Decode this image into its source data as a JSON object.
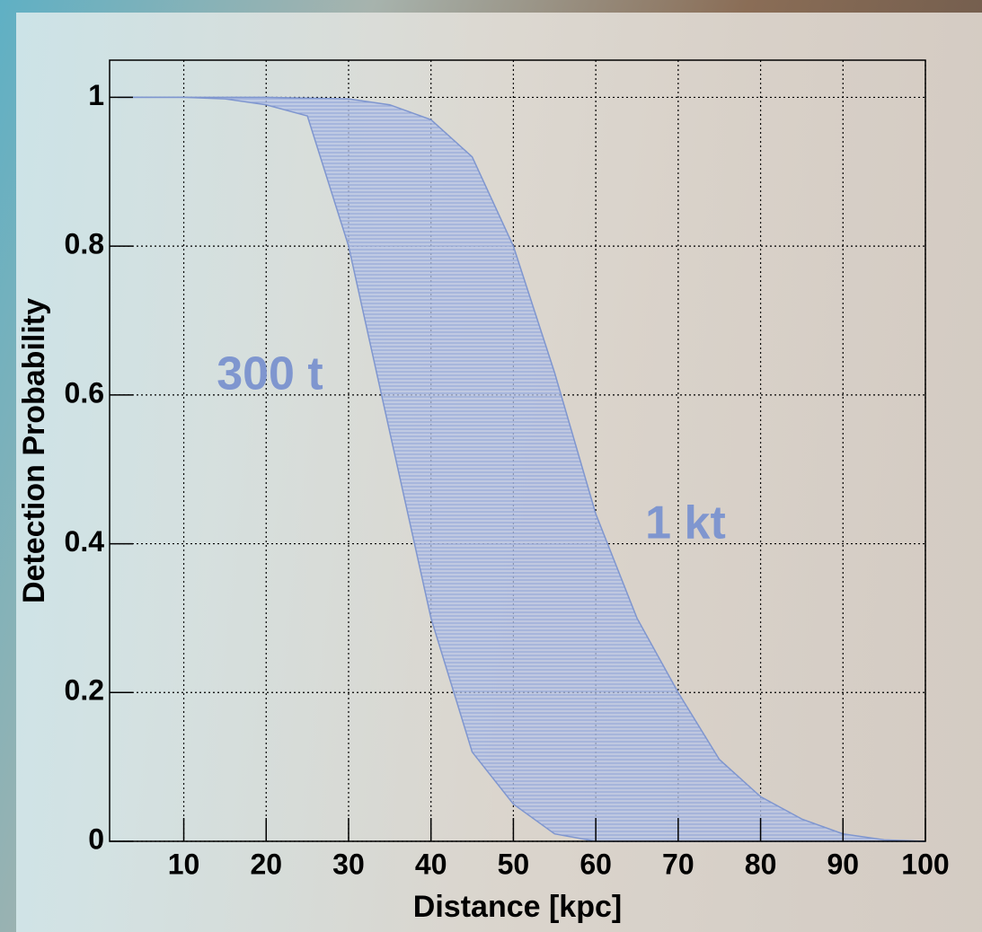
{
  "chart_data": {
    "type": "band",
    "x_label": "Distance [kpc]",
    "y_label": "Detection Probability",
    "x": [
      2,
      5,
      10,
      15,
      20,
      25,
      30,
      35,
      40,
      45,
      50,
      55,
      60,
      65,
      70,
      75,
      80,
      85,
      90,
      95,
      100
    ],
    "series": [
      {
        "name": "300 t",
        "color": "#7f96cf",
        "values": [
          1,
          1,
          1,
          0.998,
          0.99,
          0.975,
          0.8,
          0.55,
          0.3,
          0.12,
          0.05,
          0.01,
          0,
          0,
          0,
          0,
          0,
          0,
          0,
          0,
          0
        ]
      },
      {
        "name": "1 kt",
        "color": "#7f96cf",
        "values": [
          1,
          1,
          1,
          1,
          1,
          0.999,
          0.998,
          0.99,
          0.97,
          0.92,
          0.8,
          0.63,
          0.44,
          0.3,
          0.2,
          0.11,
          0.06,
          0.03,
          0.01,
          0.002,
          0
        ]
      }
    ],
    "fill_color": "#9fb2de",
    "xlim": [
      1,
      100
    ],
    "xticks": [
      10,
      20,
      30,
      40,
      50,
      60,
      70,
      80,
      90,
      100
    ],
    "ylim": [
      0,
      1.05
    ],
    "yticks": [
      0,
      0.2,
      0.4,
      0.6,
      0.8,
      1
    ],
    "grid": true
  }
}
